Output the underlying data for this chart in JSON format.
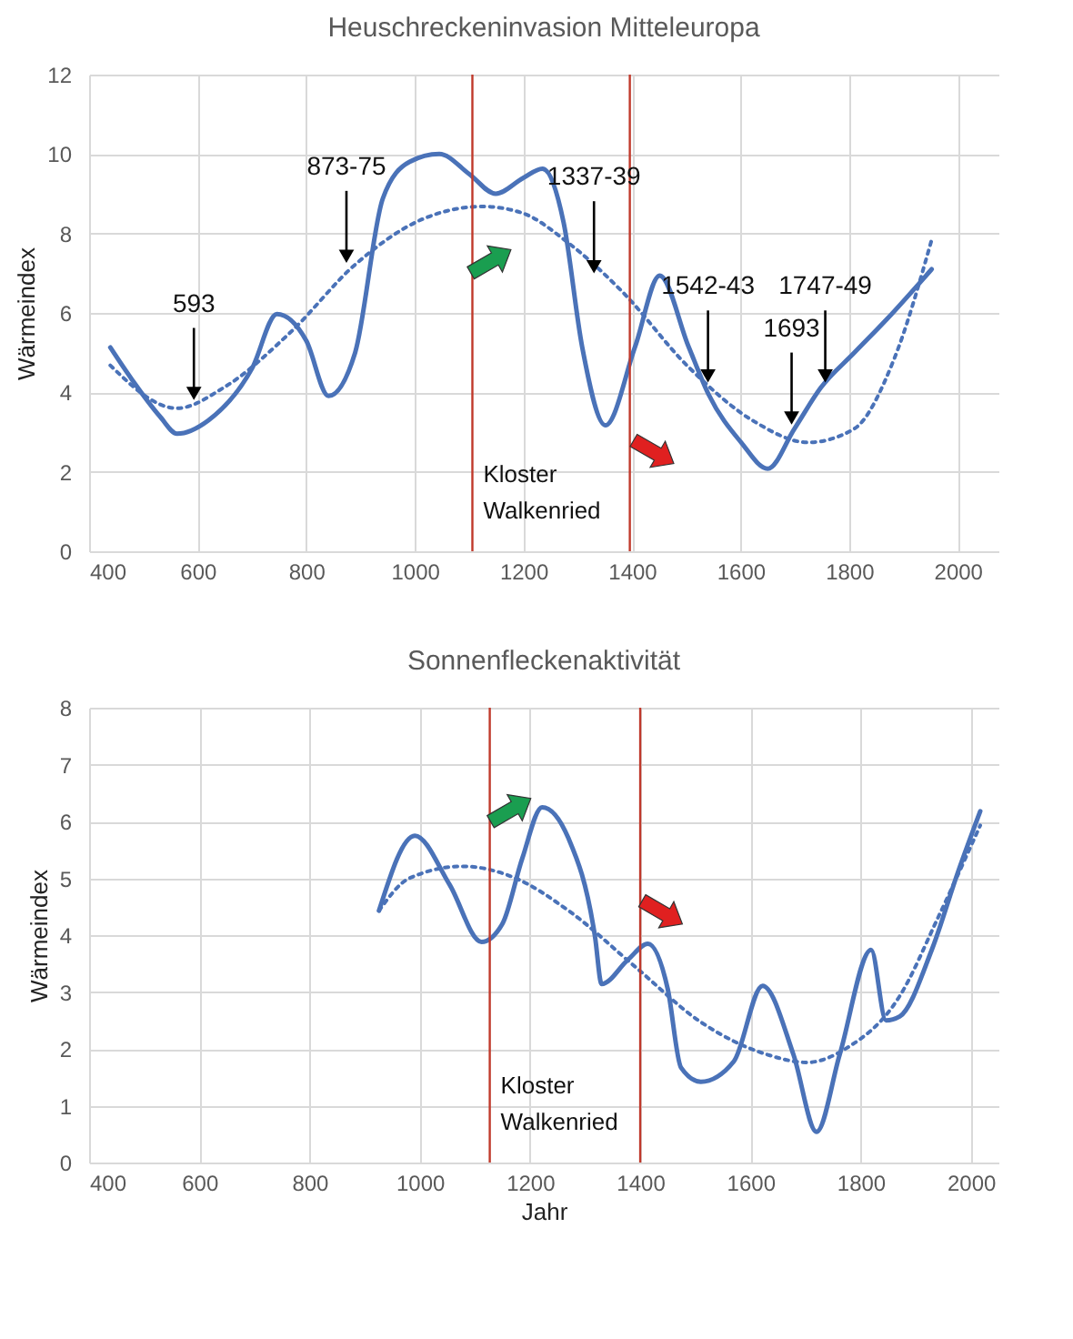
{
  "chart_data": [
    {
      "type": "line",
      "title": "Heuschreckeninvasion Mitteleuropa",
      "ylabel": "Wärmeindex",
      "xlim": [
        400,
        2075
      ],
      "xticks": [
        400,
        600,
        800,
        1000,
        1200,
        1400,
        1600,
        1800,
        2000
      ],
      "ylim": [
        0,
        12
      ],
      "yticks": [
        0,
        2,
        4,
        6,
        8,
        10,
        12
      ],
      "grid": true,
      "series": [
        {
          "color": "#4a72b8",
          "line_style": "solid",
          "x": [
            439,
            480,
            530,
            562,
            620,
            700,
            746,
            800,
            841,
            890,
            941,
            990,
            1045,
            1100,
            1149,
            1200,
            1235,
            1274,
            1308,
            1351,
            1406,
            1451,
            1504,
            1541,
            1601,
            1650,
            1699,
            1748,
            1809,
            1870,
            1952
          ],
          "values": [
            5.13,
            4.3,
            3.4,
            2.96,
            3.3,
            4.6,
            5.97,
            5.3,
            3.91,
            5.0,
            8.88,
            9.8,
            10.0,
            9.5,
            9.0,
            9.4,
            9.63,
            8.28,
            5.16,
            3.17,
            5.16,
            6.94,
            5.16,
            3.95,
            2.74,
            2.08,
            3.08,
            4.12,
            4.99,
            5.85,
            7.1
          ]
        },
        {
          "color": "#4a72b8",
          "line_style": "dotted",
          "x": [
            439,
            562,
            648,
            770,
            892,
            1014,
            1124,
            1197,
            1283,
            1381,
            1504,
            1626,
            1724,
            1809,
            1882,
            1952
          ],
          "values": [
            4.68,
            3.6,
            4.12,
            5.5,
            7.24,
            8.36,
            8.68,
            8.52,
            7.76,
            6.55,
            4.64,
            3.26,
            2.74,
            3.08,
            4.81,
            7.84
          ]
        }
      ],
      "ref_lines": [
        {
          "axis": "x",
          "value": 1106,
          "label": "Kloster Walkenried",
          "color": "#c0392b"
        },
        {
          "axis": "x",
          "value": 1396,
          "color": "#c0392b"
        }
      ],
      "annotations": [
        {
          "text": "593",
          "x": 593,
          "y": 3.79
        },
        {
          "text": "873-75",
          "x": 874,
          "y": 7.24
        },
        {
          "text": "1337-39",
          "x": 1330,
          "y": 6.98
        },
        {
          "text": "1542-43",
          "x": 1540,
          "y": 4.23
        },
        {
          "text": "1693",
          "x": 1694,
          "y": 3.17
        },
        {
          "text": "1747-49",
          "x": 1756,
          "y": 4.23
        }
      ]
    },
    {
      "type": "line",
      "title": "Sonnenfleckenaktivität",
      "xlabel": "Jahr",
      "ylabel": "Wärmeindex",
      "xlim": [
        400,
        2050
      ],
      "xticks": [
        400,
        600,
        800,
        1000,
        1200,
        1400,
        1600,
        1800,
        2000
      ],
      "ylim": [
        0,
        8
      ],
      "yticks": [
        0,
        1,
        2,
        3,
        4,
        5,
        6,
        7,
        8
      ],
      "grid": true,
      "series": [
        {
          "color": "#4a72b8",
          "line_style": "solid",
          "x": [
            926,
            991,
            1054,
            1112,
            1150,
            1186,
            1222,
            1270,
            1318,
            1330,
            1378,
            1414,
            1450,
            1474,
            1510,
            1570,
            1622,
            1678,
            1720,
            1762,
            1819,
            1846,
            1871,
            1929,
            1977,
            2017
          ],
          "values": [
            4.43,
            5.75,
            4.89,
            3.88,
            4.2,
            5.35,
            6.25,
            5.7,
            3.97,
            3.14,
            3.57,
            3.85,
            3.05,
            1.67,
            1.42,
            1.78,
            3.11,
            1.9,
            0.54,
            1.9,
            3.74,
            2.5,
            2.57,
            3.74,
            5.12,
            6.18
          ]
        },
        {
          "color": "#4a72b8",
          "line_style": "dotted",
          "x": [
            926,
            981,
            1077,
            1174,
            1270,
            1390,
            1510,
            1630,
            1702,
            1774,
            1871,
            1941,
            2017
          ],
          "values": [
            4.43,
            5.0,
            5.21,
            5.0,
            4.43,
            3.45,
            2.47,
            1.9,
            1.76,
            2.01,
            2.93,
            4.32,
            5.93
          ]
        }
      ],
      "ref_lines": [
        {
          "axis": "x",
          "value": 1127,
          "label": "Kloster Walkenried",
          "color": "#c0392b"
        },
        {
          "axis": "x",
          "value": 1400,
          "color": "#c0392b"
        }
      ]
    }
  ]
}
